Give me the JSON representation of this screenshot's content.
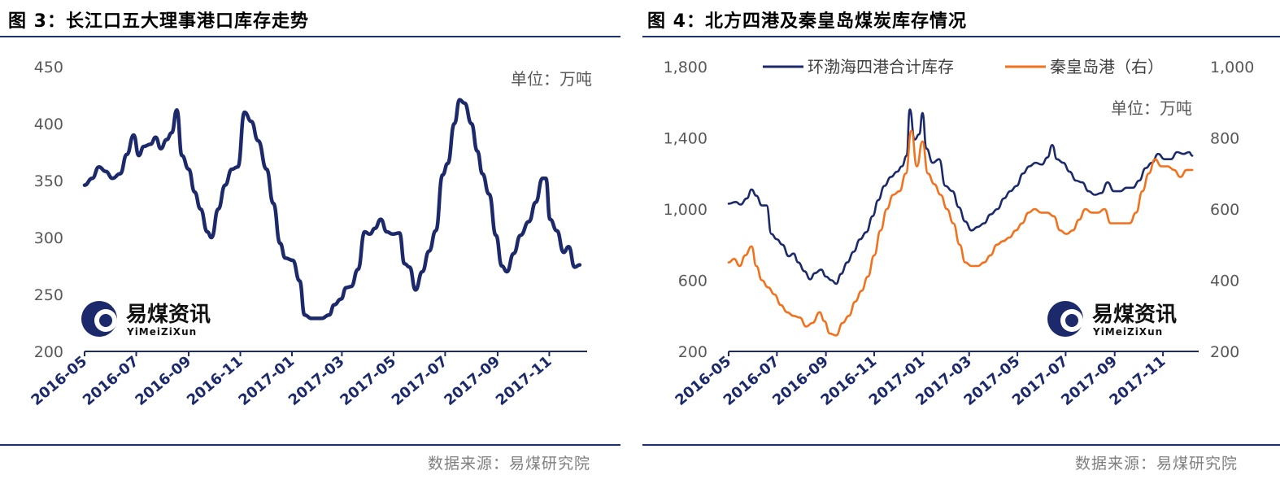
{
  "left": {
    "figure_title": "图 3：长江口五大理事港口库存走势",
    "source": "数据来源：易煤研究院",
    "unit_note": "单位：万吨",
    "watermark": {
      "cn": "易煤资讯",
      "en": "YiMeiZiXun"
    },
    "chart_data": {
      "type": "line",
      "title": "长江口五大理事港口库存走势",
      "x_ticks": [
        "2016-05",
        "2016-07",
        "2016-09",
        "2016-11",
        "2017-01",
        "2017-03",
        "2017-05",
        "2017-07",
        "2017-09",
        "2017-11"
      ],
      "y_ticks": [
        "200",
        "250",
        "300",
        "350",
        "400",
        "450"
      ],
      "ylim": [
        200,
        450
      ],
      "xlim": [
        "2016-05-01",
        "2017-12-10"
      ],
      "series": [
        {
          "color": "#1c2a6b",
          "points": [
            [
              "2016-05-01",
              346
            ],
            [
              "2016-05-10",
              352
            ],
            [
              "2016-05-18",
              362
            ],
            [
              "2016-05-26",
              358
            ],
            [
              "2016-06-03",
              352
            ],
            [
              "2016-06-12",
              356
            ],
            [
              "2016-06-20",
              373
            ],
            [
              "2016-06-28",
              390
            ],
            [
              "2016-07-04",
              372
            ],
            [
              "2016-07-10",
              380
            ],
            [
              "2016-07-18",
              382
            ],
            [
              "2016-07-24",
              388
            ],
            [
              "2016-07-30",
              378
            ],
            [
              "2016-08-06",
              386
            ],
            [
              "2016-08-12",
              392
            ],
            [
              "2016-08-18",
              412
            ],
            [
              "2016-08-24",
              372
            ],
            [
              "2016-09-01",
              360
            ],
            [
              "2016-09-08",
              340
            ],
            [
              "2016-09-15",
              325
            ],
            [
              "2016-09-23",
              305
            ],
            [
              "2016-09-28",
              300
            ],
            [
              "2016-10-06",
              325
            ],
            [
              "2016-10-14",
              346
            ],
            [
              "2016-10-22",
              360
            ],
            [
              "2016-10-29",
              362
            ],
            [
              "2016-11-06",
              410
            ],
            [
              "2016-11-14",
              402
            ],
            [
              "2016-11-22",
              385
            ],
            [
              "2016-12-02",
              360
            ],
            [
              "2016-12-10",
              330
            ],
            [
              "2016-12-18",
              295
            ],
            [
              "2016-12-24",
              282
            ],
            [
              "2017-01-02",
              280
            ],
            [
              "2017-01-10",
              262
            ],
            [
              "2017-01-16",
              232
            ],
            [
              "2017-01-24",
              229
            ],
            [
              "2017-02-05",
              229
            ],
            [
              "2017-02-14",
              232
            ],
            [
              "2017-02-20",
              241
            ],
            [
              "2017-02-28",
              246
            ],
            [
              "2017-03-06",
              256
            ],
            [
              "2017-03-12",
              257
            ],
            [
              "2017-03-20",
              272
            ],
            [
              "2017-03-28",
              305
            ],
            [
              "2017-04-03",
              303
            ],
            [
              "2017-04-09",
              308
            ],
            [
              "2017-04-16",
              316
            ],
            [
              "2017-04-23",
              305
            ],
            [
              "2017-04-30",
              303
            ],
            [
              "2017-05-08",
              304
            ],
            [
              "2017-05-14",
              277
            ],
            [
              "2017-05-20",
              274
            ],
            [
              "2017-05-27",
              254
            ],
            [
              "2017-06-04",
              270
            ],
            [
              "2017-06-12",
              288
            ],
            [
              "2017-06-20",
              306
            ],
            [
              "2017-06-28",
              355
            ],
            [
              "2017-07-04",
              365
            ],
            [
              "2017-07-12",
              400
            ],
            [
              "2017-07-18",
              421
            ],
            [
              "2017-07-24",
              418
            ],
            [
              "2017-08-01",
              400
            ],
            [
              "2017-08-08",
              376
            ],
            [
              "2017-08-14",
              356
            ],
            [
              "2017-08-22",
              338
            ],
            [
              "2017-08-30",
              302
            ],
            [
              "2017-09-06",
              275
            ],
            [
              "2017-09-12",
              270
            ],
            [
              "2017-09-20",
              286
            ],
            [
              "2017-09-28",
              302
            ],
            [
              "2017-10-08",
              314
            ],
            [
              "2017-10-16",
              331
            ],
            [
              "2017-10-24",
              352
            ],
            [
              "2017-10-28",
              352
            ],
            [
              "2017-11-02",
              316
            ],
            [
              "2017-11-10",
              306
            ],
            [
              "2017-11-18",
              287
            ],
            [
              "2017-11-24",
              292
            ],
            [
              "2017-12-01",
              274
            ],
            [
              "2017-12-07",
              276
            ]
          ]
        }
      ]
    }
  },
  "right": {
    "figure_title": "图 4：北方四港及秦皇岛煤炭库存情况",
    "source": "数据来源：易煤研究院",
    "unit_note": "单位：万吨",
    "watermark": {
      "cn": "易煤资讯",
      "en": "YiMeiZiXun"
    },
    "chart_data": {
      "type": "line",
      "title": "北方四港及秦皇岛煤炭库存情况",
      "x_ticks": [
        "2016-05",
        "2016-07",
        "2016-09",
        "2016-11",
        "2017-01",
        "2017-03",
        "2017-05",
        "2017-07",
        "2017-09",
        "2017-11"
      ],
      "y_ticks_left": [
        "200",
        "600",
        "1,000",
        "1,400",
        "1,800"
      ],
      "y_ticks_right": [
        "200",
        "400",
        "600",
        "800",
        "1,000"
      ],
      "ylim_left": [
        200,
        1800
      ],
      "ylim_right": [
        200,
        1000
      ],
      "xlim": [
        "2016-05-01",
        "2017-12-10"
      ],
      "legend_position": "top",
      "series": [
        {
          "name": "环渤海四港合计库存",
          "axis": "left",
          "color": "#1c2a6b",
          "points": [
            [
              "2016-05-01",
              1030
            ],
            [
              "2016-05-10",
              1040
            ],
            [
              "2016-05-16",
              1025
            ],
            [
              "2016-05-24",
              1060
            ],
            [
              "2016-05-30",
              1110
            ],
            [
              "2016-06-05",
              1075
            ],
            [
              "2016-06-12",
              1020
            ],
            [
              "2016-06-18",
              1020
            ],
            [
              "2016-06-24",
              860
            ],
            [
              "2016-07-01",
              830
            ],
            [
              "2016-07-08",
              800
            ],
            [
              "2016-07-16",
              735
            ],
            [
              "2016-07-22",
              750
            ],
            [
              "2016-07-28",
              700
            ],
            [
              "2016-08-05",
              650
            ],
            [
              "2016-08-12",
              605
            ],
            [
              "2016-08-18",
              640
            ],
            [
              "2016-08-26",
              660
            ],
            [
              "2016-09-01",
              620
            ],
            [
              "2016-09-08",
              600
            ],
            [
              "2016-09-14",
              580
            ],
            [
              "2016-09-20",
              635
            ],
            [
              "2016-09-28",
              700
            ],
            [
              "2016-10-06",
              760
            ],
            [
              "2016-10-14",
              830
            ],
            [
              "2016-10-22",
              870
            ],
            [
              "2016-10-30",
              960
            ],
            [
              "2016-11-06",
              1050
            ],
            [
              "2016-11-14",
              1130
            ],
            [
              "2016-11-22",
              1180
            ],
            [
              "2016-11-30",
              1210
            ],
            [
              "2016-12-06",
              1240
            ],
            [
              "2016-12-12",
              1300
            ],
            [
              "2016-12-16",
              1560
            ],
            [
              "2016-12-22",
              1390
            ],
            [
              "2016-12-28",
              1420
            ],
            [
              "2017-01-01",
              1540
            ],
            [
              "2017-01-06",
              1340
            ],
            [
              "2017-01-14",
              1260
            ],
            [
              "2017-01-22",
              1280
            ],
            [
              "2017-01-30",
              1130
            ],
            [
              "2017-02-08",
              1100
            ],
            [
              "2017-02-16",
              1010
            ],
            [
              "2017-02-24",
              930
            ],
            [
              "2017-03-04",
              880
            ],
            [
              "2017-03-12",
              900
            ],
            [
              "2017-03-20",
              920
            ],
            [
              "2017-03-28",
              970
            ],
            [
              "2017-04-06",
              1000
            ],
            [
              "2017-04-14",
              1060
            ],
            [
              "2017-04-22",
              1100
            ],
            [
              "2017-04-30",
              1130
            ],
            [
              "2017-05-08",
              1200
            ],
            [
              "2017-05-16",
              1240
            ],
            [
              "2017-05-24",
              1260
            ],
            [
              "2017-06-01",
              1250
            ],
            [
              "2017-06-08",
              1290
            ],
            [
              "2017-06-14",
              1360
            ],
            [
              "2017-06-20",
              1280
            ],
            [
              "2017-06-28",
              1260
            ],
            [
              "2017-07-06",
              1210
            ],
            [
              "2017-07-14",
              1160
            ],
            [
              "2017-07-22",
              1150
            ],
            [
              "2017-07-30",
              1100
            ],
            [
              "2017-08-07",
              1080
            ],
            [
              "2017-08-15",
              1090
            ],
            [
              "2017-08-23",
              1150
            ],
            [
              "2017-08-31",
              1100
            ],
            [
              "2017-09-08",
              1100
            ],
            [
              "2017-09-16",
              1120
            ],
            [
              "2017-09-24",
              1120
            ],
            [
              "2017-10-02",
              1160
            ],
            [
              "2017-10-10",
              1230
            ],
            [
              "2017-10-18",
              1260
            ],
            [
              "2017-10-26",
              1310
            ],
            [
              "2017-11-03",
              1280
            ],
            [
              "2017-11-11",
              1280
            ],
            [
              "2017-11-19",
              1320
            ],
            [
              "2017-11-27",
              1310
            ],
            [
              "2017-12-04",
              1320
            ],
            [
              "2017-12-08",
              1300
            ]
          ]
        },
        {
          "name": "秦皇岛港（右）",
          "axis": "right",
          "color": "#f2711c",
          "points": [
            [
              "2016-05-01",
              450
            ],
            [
              "2016-05-08",
              460
            ],
            [
              "2016-05-15",
              440
            ],
            [
              "2016-05-22",
              470
            ],
            [
              "2016-05-30",
              495
            ],
            [
              "2016-06-05",
              440
            ],
            [
              "2016-06-12",
              400
            ],
            [
              "2016-06-20",
              380
            ],
            [
              "2016-06-28",
              360
            ],
            [
              "2016-07-06",
              330
            ],
            [
              "2016-07-14",
              310
            ],
            [
              "2016-07-22",
              300
            ],
            [
              "2016-07-30",
              295
            ],
            [
              "2016-08-07",
              270
            ],
            [
              "2016-08-15",
              280
            ],
            [
              "2016-08-24",
              310
            ],
            [
              "2016-08-30",
              285
            ],
            [
              "2016-09-06",
              250
            ],
            [
              "2016-09-14",
              245
            ],
            [
              "2016-09-22",
              280
            ],
            [
              "2016-09-30",
              300
            ],
            [
              "2016-10-08",
              340
            ],
            [
              "2016-10-16",
              370
            ],
            [
              "2016-10-24",
              410
            ],
            [
              "2016-11-01",
              470
            ],
            [
              "2016-11-09",
              540
            ],
            [
              "2016-11-17",
              600
            ],
            [
              "2016-11-25",
              640
            ],
            [
              "2016-12-03",
              650
            ],
            [
              "2016-12-11",
              700
            ],
            [
              "2016-12-18",
              820
            ],
            [
              "2016-12-25",
              720
            ],
            [
              "2017-01-01",
              790
            ],
            [
              "2017-01-08",
              700
            ],
            [
              "2017-01-16",
              670
            ],
            [
              "2017-01-24",
              640
            ],
            [
              "2017-02-01",
              600
            ],
            [
              "2017-02-09",
              560
            ],
            [
              "2017-02-17",
              500
            ],
            [
              "2017-02-24",
              450
            ],
            [
              "2017-03-04",
              440
            ],
            [
              "2017-03-12",
              440
            ],
            [
              "2017-03-20",
              450
            ],
            [
              "2017-03-28",
              470
            ],
            [
              "2017-04-05",
              500
            ],
            [
              "2017-04-13",
              510
            ],
            [
              "2017-04-21",
              520
            ],
            [
              "2017-04-29",
              540
            ],
            [
              "2017-05-07",
              560
            ],
            [
              "2017-05-15",
              590
            ],
            [
              "2017-05-23",
              600
            ],
            [
              "2017-05-31",
              590
            ],
            [
              "2017-06-08",
              590
            ],
            [
              "2017-06-16",
              580
            ],
            [
              "2017-06-24",
              540
            ],
            [
              "2017-07-02",
              530
            ],
            [
              "2017-07-10",
              540
            ],
            [
              "2017-07-18",
              570
            ],
            [
              "2017-07-26",
              600
            ],
            [
              "2017-08-03",
              590
            ],
            [
              "2017-08-11",
              590
            ],
            [
              "2017-08-19",
              600
            ],
            [
              "2017-08-27",
              560
            ],
            [
              "2017-09-04",
              560
            ],
            [
              "2017-09-12",
              560
            ],
            [
              "2017-09-20",
              560
            ],
            [
              "2017-09-28",
              590
            ],
            [
              "2017-10-06",
              650
            ],
            [
              "2017-10-14",
              700
            ],
            [
              "2017-10-22",
              740
            ],
            [
              "2017-10-30",
              720
            ],
            [
              "2017-11-07",
              720
            ],
            [
              "2017-11-15",
              710
            ],
            [
              "2017-11-23",
              690
            ],
            [
              "2017-12-01",
              710
            ],
            [
              "2017-12-08",
              710
            ]
          ]
        }
      ]
    }
  }
}
